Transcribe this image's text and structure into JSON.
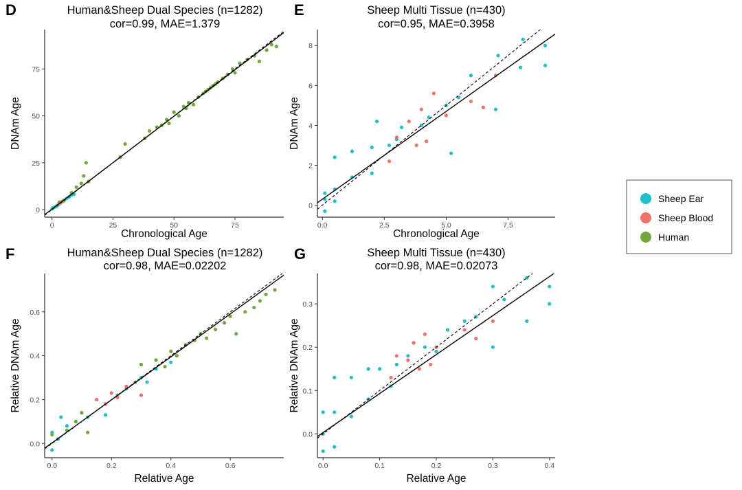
{
  "colors": {
    "Sheep Ear": "#1fbfc4",
    "Sheep Blood": "#f0706a",
    "Human": "#72a83a",
    "fit_line": "#000000",
    "diagonal": "#000000"
  },
  "legend": {
    "items": [
      {
        "label": "Sheep Ear",
        "color": "#1fbfc4"
      },
      {
        "label": "Sheep Blood",
        "color": "#f0706a"
      },
      {
        "label": "Human",
        "color": "#72a83a"
      }
    ]
  },
  "chart_data": [
    {
      "type": "scatter",
      "panel": "D",
      "title": "Human&Sheep Dual Species (n=1282)",
      "subtitle": "cor=0.99, MAE=1.379",
      "xlabel": "Chronological Age",
      "ylabel": "DNAm Age",
      "xlim": [
        -3,
        95
      ],
      "ylim": [
        -4,
        96
      ],
      "xticks": [
        0,
        25,
        50,
        75
      ],
      "yticks": [
        0,
        25,
        50,
        75
      ],
      "xtick_labels": [
        "0",
        "25",
        "50",
        "75"
      ],
      "ytick_labels": [
        "0",
        "25",
        "50",
        "75"
      ],
      "grid": false,
      "diagonal": true,
      "fit": {
        "slope": 0.99,
        "intercept": 0.3
      },
      "series": [
        {
          "name": "Sheep Ear",
          "x": [
            0.08,
            0.5,
            1.3,
            2.0,
            2.5,
            3.0,
            3.5,
            4.0,
            4.5,
            5.0,
            6.0,
            7.0,
            8.0,
            9.0
          ],
          "y": [
            0.5,
            1.0,
            1.5,
            2.0,
            2.6,
            3.0,
            3.6,
            4.1,
            4.5,
            5.0,
            6.0,
            6.8,
            7.8,
            8.2
          ]
        },
        {
          "name": "Sheep Blood",
          "x": [
            2.8,
            3.5,
            4.0,
            4.5
          ],
          "y": [
            3.0,
            3.9,
            4.2,
            4.6
          ]
        },
        {
          "name": "Human",
          "x": [
            3,
            5,
            8,
            10,
            12,
            13,
            14,
            15,
            28,
            30,
            38,
            40,
            43,
            45,
            47,
            48,
            50,
            52,
            54,
            55,
            56,
            58,
            60,
            62,
            63,
            64,
            65,
            66,
            67,
            68,
            70,
            72,
            74,
            75,
            77,
            80,
            83,
            85,
            88,
            90,
            92
          ],
          "y": [
            4,
            5,
            9,
            12,
            14,
            18,
            25,
            15,
            28,
            35,
            38,
            42,
            44,
            45,
            48,
            46,
            52,
            50,
            55,
            54,
            57,
            56,
            60,
            62,
            63,
            64,
            65,
            66,
            67,
            68,
            70,
            72,
            75,
            73,
            78,
            80,
            82,
            79,
            85,
            88,
            87
          ]
        }
      ]
    },
    {
      "type": "scatter",
      "panel": "E",
      "title": "Sheep Multi Tissue (n=430)",
      "subtitle": "cor=0.95, MAE=0.3958",
      "xlabel": "Chronological Age",
      "ylabel": "DNAm Age",
      "xlim": [
        -0.2,
        9.4
      ],
      "ylim": [
        -0.6,
        8.8
      ],
      "xticks": [
        0.0,
        2.5,
        5.0,
        7.5
      ],
      "yticks": [
        0,
        2,
        4,
        6,
        8
      ],
      "xtick_labels": [
        "0.0",
        "2.5",
        "5.0",
        "7.5"
      ],
      "ytick_labels": [
        "0",
        "2",
        "4",
        "6",
        "8"
      ],
      "grid": false,
      "diagonal": true,
      "fit": {
        "slope": 0.88,
        "intercept": 0.3
      },
      "series": [
        {
          "name": "Sheep Ear",
          "x": [
            0.1,
            0.1,
            0.1,
            0.5,
            0.5,
            0.5,
            1.2,
            1.2,
            2.0,
            2.0,
            2.2,
            2.7,
            3.0,
            3.2,
            4.0,
            4.3,
            5.0,
            5.2,
            5.5,
            6.0,
            7.0,
            7.1,
            8.0,
            8.1,
            9.0,
            9.0
          ],
          "y": [
            -0.3,
            0.3,
            0.6,
            0.2,
            0.8,
            2.4,
            1.4,
            2.7,
            1.6,
            2.9,
            4.2,
            3.0,
            3.3,
            3.9,
            4.0,
            4.4,
            5.0,
            2.6,
            5.4,
            6.5,
            4.8,
            7.5,
            6.9,
            8.3,
            7.0,
            8.0
          ]
        },
        {
          "name": "Sheep Blood",
          "x": [
            2.7,
            3.0,
            3.5,
            3.8,
            4.0,
            4.2,
            4.5,
            5.0,
            6.0,
            6.5,
            7.0
          ],
          "y": [
            2.2,
            3.4,
            4.2,
            3.0,
            4.8,
            3.2,
            5.6,
            4.5,
            5.2,
            4.9,
            6.5
          ]
        }
      ]
    },
    {
      "type": "scatter",
      "panel": "F",
      "title": "Human&Sheep Dual Species (n=1282)",
      "subtitle": "cor=0.98, MAE=0.02202",
      "xlabel": "Relative Age",
      "ylabel": "Relative DNAm Age",
      "xlim": [
        -0.025,
        0.78
      ],
      "ylim": [
        -0.065,
        0.775
      ],
      "xticks": [
        0.0,
        0.2,
        0.4,
        0.6
      ],
      "yticks": [
        0.0,
        0.2,
        0.4,
        0.6
      ],
      "xtick_labels": [
        "0.0",
        "0.2",
        "0.4",
        "0.6"
      ],
      "ytick_labels": [
        "0.0",
        "0.2",
        "0.4",
        "0.6"
      ],
      "grid": false,
      "diagonal": true,
      "fit": {
        "slope": 0.98,
        "intercept": 0.003
      },
      "series": [
        {
          "name": "Sheep Ear",
          "x": [
            0.0,
            0.0,
            0.02,
            0.03,
            0.05,
            0.08,
            0.1,
            0.12,
            0.15,
            0.18,
            0.22,
            0.25,
            0.3,
            0.32,
            0.35,
            0.4
          ],
          "y": [
            -0.03,
            0.05,
            0.02,
            0.12,
            0.08,
            0.1,
            0.14,
            0.12,
            0.2,
            0.13,
            0.22,
            0.25,
            0.3,
            0.28,
            0.34,
            0.37
          ]
        },
        {
          "name": "Sheep Blood",
          "x": [
            0.15,
            0.18,
            0.2,
            0.22,
            0.25,
            0.3
          ],
          "y": [
            0.2,
            0.18,
            0.23,
            0.21,
            0.26,
            0.22
          ]
        },
        {
          "name": "Human",
          "x": [
            0.0,
            0.05,
            0.08,
            0.1,
            0.12,
            0.28,
            0.3,
            0.35,
            0.38,
            0.4,
            0.42,
            0.45,
            0.48,
            0.5,
            0.52,
            0.55,
            0.58,
            0.6,
            0.62,
            0.65,
            0.68,
            0.7,
            0.72,
            0.75
          ],
          "y": [
            0.04,
            0.06,
            0.1,
            0.14,
            0.05,
            0.28,
            0.36,
            0.38,
            0.35,
            0.42,
            0.4,
            0.45,
            0.47,
            0.5,
            0.48,
            0.52,
            0.55,
            0.58,
            0.5,
            0.6,
            0.62,
            0.65,
            0.68,
            0.7
          ]
        }
      ]
    },
    {
      "type": "scatter",
      "panel": "G",
      "title": "Sheep Multi Tissue (n=430)",
      "subtitle": "cor=0.98, MAE=0.02073",
      "xlabel": "Relative Age",
      "ylabel": "Relative DNAm Age",
      "xlim": [
        -0.01,
        0.41
      ],
      "ylim": [
        -0.055,
        0.37
      ],
      "xticks": [
        0.0,
        0.1,
        0.2,
        0.3,
        0.4
      ],
      "yticks": [
        0.0,
        0.1,
        0.2,
        0.3
      ],
      "xtick_labels": [
        "0.0",
        "0.1",
        "0.2",
        "0.3",
        "0.4"
      ],
      "ytick_labels": [
        "0.0",
        "0.1",
        "0.2",
        "0.3"
      ],
      "grid": false,
      "diagonal": true,
      "fit": {
        "slope": 0.9,
        "intercept": 0.003
      },
      "series": [
        {
          "name": "Sheep Ear",
          "x": [
            0.0,
            0.0,
            0.0,
            0.02,
            0.02,
            0.02,
            0.05,
            0.05,
            0.08,
            0.08,
            0.1,
            0.12,
            0.13,
            0.15,
            0.18,
            0.2,
            0.22,
            0.25,
            0.27,
            0.3,
            0.3,
            0.32,
            0.36,
            0.36,
            0.4,
            0.4
          ],
          "y": [
            -0.04,
            0.0,
            0.05,
            -0.03,
            0.05,
            0.13,
            0.04,
            0.13,
            0.08,
            0.15,
            0.15,
            0.11,
            0.16,
            0.18,
            0.2,
            0.19,
            0.24,
            0.26,
            0.27,
            0.2,
            0.34,
            0.31,
            0.26,
            0.36,
            0.3,
            0.34
          ]
        },
        {
          "name": "Sheep Blood",
          "x": [
            0.12,
            0.13,
            0.15,
            0.16,
            0.17,
            0.18,
            0.19,
            0.2,
            0.25,
            0.27,
            0.3
          ],
          "y": [
            0.13,
            0.18,
            0.17,
            0.21,
            0.15,
            0.23,
            0.16,
            0.2,
            0.24,
            0.22,
            0.26
          ]
        }
      ]
    }
  ]
}
